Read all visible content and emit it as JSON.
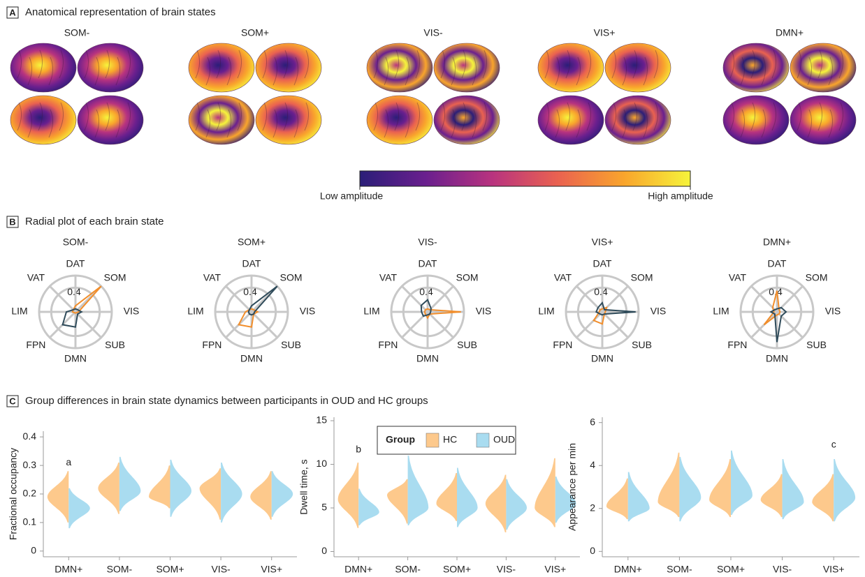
{
  "panels": [
    {
      "letter": "A",
      "title": "Anatomical representation of brain states"
    },
    {
      "letter": "B",
      "title": "Radial plot of each brain state"
    },
    {
      "letter": "C",
      "title": "Group differences in brain state dynamics between participants in OUD and HC groups"
    }
  ],
  "brain_states": [
    "SOM-",
    "SOM+",
    "VIS-",
    "VIS+",
    "DMN+"
  ],
  "colorbar": {
    "low_label": "Low amplitude",
    "high_label": "High amplitude",
    "colors": [
      "#2b1e78",
      "#6a1f8e",
      "#b8337f",
      "#ea6250",
      "#f9a52c",
      "#f6f43b"
    ]
  },
  "chart_data": [
    {
      "type": "radar",
      "title": "SOM-",
      "categories": [
        "DAT",
        "SOM",
        "VIS",
        "SUB",
        "DMN",
        "FPN",
        "LIM",
        "VAT"
      ],
      "rlim": [
        0,
        0.6
      ],
      "rticks": [
        0.4
      ],
      "series": [
        {
          "color": "#f28e2b",
          "values": [
            0.1,
            0.6,
            0.05,
            0.02,
            0.02,
            0.02,
            0.05,
            0.05
          ]
        },
        {
          "color": "#2f4b5a",
          "values": [
            0.05,
            0.05,
            0.1,
            0.05,
            0.25,
            0.3,
            0.15,
            0.05
          ]
        }
      ]
    },
    {
      "type": "radar",
      "title": "SOM+",
      "categories": [
        "DAT",
        "SOM",
        "VIS",
        "SUB",
        "DMN",
        "FPN",
        "LIM",
        "VAT"
      ],
      "rlim": [
        0,
        0.6
      ],
      "rticks": [
        0.4
      ],
      "series": [
        {
          "color": "#f28e2b",
          "values": [
            0.05,
            0.05,
            0.1,
            0.05,
            0.25,
            0.3,
            0.1,
            0.05
          ]
        },
        {
          "color": "#2f4b5a",
          "values": [
            0.1,
            0.6,
            0.05,
            0.05,
            0.05,
            0.05,
            0.05,
            0.05
          ]
        }
      ]
    },
    {
      "type": "radar",
      "title": "VIS-",
      "categories": [
        "DAT",
        "SOM",
        "VIS",
        "SUB",
        "DMN",
        "FPN",
        "LIM",
        "VAT"
      ],
      "rlim": [
        0,
        0.6
      ],
      "rticks": [
        0.4
      ],
      "series": [
        {
          "color": "#f28e2b",
          "values": [
            0.05,
            0.05,
            0.55,
            0.05,
            0.1,
            0.05,
            0.05,
            0.05
          ]
        },
        {
          "color": "#2f4b5a",
          "values": [
            0.2,
            0.08,
            0.05,
            0.05,
            0.05,
            0.1,
            0.1,
            0.15
          ]
        }
      ]
    },
    {
      "type": "radar",
      "title": "VIS+",
      "categories": [
        "DAT",
        "SOM",
        "VIS",
        "SUB",
        "DMN",
        "FPN",
        "LIM",
        "VAT"
      ],
      "rlim": [
        0,
        0.6
      ],
      "rticks": [
        0.4
      ],
      "series": [
        {
          "color": "#f28e2b",
          "values": [
            0.05,
            0.1,
            0.05,
            0.05,
            0.2,
            0.2,
            0.05,
            0.05
          ]
        },
        {
          "color": "#2f4b5a",
          "values": [
            0.15,
            0.05,
            0.55,
            0.05,
            0.05,
            0.05,
            0.1,
            0.1
          ]
        }
      ]
    },
    {
      "type": "radar",
      "title": "DMN+",
      "categories": [
        "DAT",
        "SOM",
        "VIS",
        "SUB",
        "DMN",
        "FPN",
        "LIM",
        "VAT"
      ],
      "rlim": [
        0,
        0.6
      ],
      "rticks": [
        0.4
      ],
      "series": [
        {
          "color": "#f28e2b",
          "values": [
            0.35,
            0.05,
            0.05,
            0.05,
            0.05,
            0.3,
            0.05,
            0.1
          ]
        },
        {
          "color": "#2f4b5a",
          "values": [
            0.05,
            0.1,
            0.15,
            0.1,
            0.5,
            0.05,
            0.1,
            0.05
          ]
        }
      ]
    },
    {
      "type": "violin",
      "ylabel": "Fractional occupancy",
      "categories": [
        "DMN+",
        "SOM-",
        "SOM+",
        "VIS-",
        "VIS+"
      ],
      "ylim": [
        -0.02,
        0.42
      ],
      "yticks": [
        0,
        0.1,
        0.2,
        0.3,
        0.4
      ],
      "grid": false,
      "legend": false,
      "series": [
        {
          "name": "HC",
          "color": "#fdc98c",
          "min": [
            0.1,
            0.13,
            0.15,
            0.11,
            0.11
          ],
          "max": [
            0.28,
            0.31,
            0.3,
            0.29,
            0.28
          ],
          "median": [
            0.19,
            0.22,
            0.19,
            0.22,
            0.19
          ]
        },
        {
          "name": "OUD",
          "color": "#a9dcf0",
          "min": [
            0.08,
            0.14,
            0.12,
            0.1,
            0.12
          ],
          "max": [
            0.22,
            0.33,
            0.32,
            0.31,
            0.28
          ],
          "median": [
            0.15,
            0.21,
            0.21,
            0.2,
            0.2
          ]
        }
      ],
      "annotations": [
        {
          "text": "a",
          "category": 0,
          "y": 0.29
        }
      ]
    },
    {
      "type": "violin",
      "ylabel": "Dwell time, s",
      "categories": [
        "DMN+",
        "SOM-",
        "SOM+",
        "VIS-",
        "VIS+"
      ],
      "ylim": [
        -0.6,
        15.4
      ],
      "yticks": [
        0,
        5,
        10,
        15
      ],
      "grid": false,
      "legend": true,
      "legend_title": "Group",
      "series": [
        {
          "name": "HC",
          "color": "#fdc98c",
          "min": [
            2.7,
            3.2,
            3.5,
            2.2,
            2.8
          ],
          "max": [
            10.2,
            8.3,
            9,
            8.8,
            10.7
          ],
          "median": [
            6,
            6.5,
            5.5,
            5.5,
            5
          ]
        },
        {
          "name": "OUD",
          "color": "#a9dcf0",
          "min": [
            3,
            3,
            2.8,
            2.5,
            3.3
          ],
          "max": [
            7.2,
            11,
            9.6,
            8.3,
            8.6
          ],
          "median": [
            4.5,
            5,
            5,
            5,
            5.5
          ]
        }
      ],
      "annotations": [
        {
          "text": "b",
          "category": 0,
          "y": 11
        }
      ]
    },
    {
      "type": "violin",
      "ylabel": "Appearance per min",
      "categories": [
        "DMN+",
        "SOM-",
        "SOM+",
        "VIS-",
        "VIS+"
      ],
      "ylim": [
        -0.25,
        6.25
      ],
      "yticks": [
        0,
        2,
        4,
        6
      ],
      "grid": false,
      "legend": false,
      "series": [
        {
          "name": "HC",
          "color": "#fdc98c",
          "min": [
            1.5,
            1.6,
            1.6,
            1.6,
            1.4
          ],
          "max": [
            3.4,
            4.6,
            4.3,
            3.6,
            3.6
          ],
          "median": [
            2.1,
            2.3,
            2.4,
            2.4,
            2.3
          ]
        },
        {
          "name": "OUD",
          "color": "#a9dcf0",
          "min": [
            1.4,
            1.4,
            1.7,
            1.5,
            1.4
          ],
          "max": [
            3.7,
            4.4,
            4.7,
            4.3,
            4.3
          ],
          "median": [
            2,
            2.5,
            2.6,
            2.3,
            2.5
          ]
        }
      ],
      "annotations": [
        {
          "text": "c",
          "category": 4,
          "y": 4.7
        }
      ]
    }
  ]
}
